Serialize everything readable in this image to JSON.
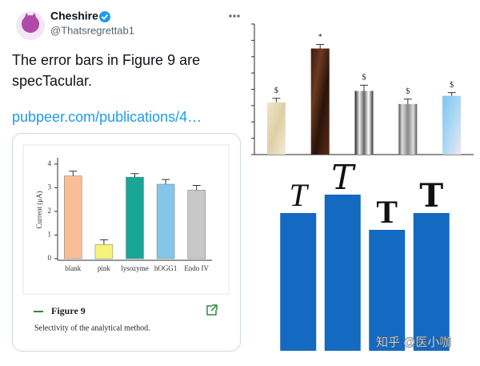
{
  "tweet": {
    "name": "Cheshire",
    "handle": "@Thatsregrettab1",
    "text_lines": [
      "The error bars in Figure 9 are",
      "specTacular."
    ],
    "link": "pubpeer.com/publications/4…"
  },
  "card": {
    "figure_label": "Figure 9",
    "caption": "Selectivity of the analytical method."
  },
  "watermark": "知乎 @医小咖",
  "chart_data": [
    {
      "type": "bar",
      "y_label": "Current (μA)",
      "categories": [
        "blank",
        "pink",
        "lysozyme",
        "hOGG1",
        "Endo IV"
      ],
      "values": [
        3.5,
        0.6,
        3.45,
        3.15,
        2.9
      ],
      "errors": [
        0.2,
        0.2,
        0.15,
        0.2,
        0.2
      ],
      "colors": [
        "#f9be94",
        "#f7f27a",
        "#1aa697",
        "#84c6ea",
        "#c8c8c8"
      ],
      "ylim": [
        0,
        4.2
      ],
      "yticks": [
        0,
        1,
        2,
        3,
        4
      ]
    },
    {
      "type": "bar",
      "categories": [
        null,
        null,
        null,
        null,
        null
      ],
      "values": [
        3.2,
        6.5,
        3.9,
        3.1,
        3.6
      ],
      "errors": [
        0.25,
        0.25,
        0.35,
        0.3,
        0.2
      ],
      "annotations": [
        "$",
        "*",
        "$",
        "$",
        "$"
      ],
      "ylim": [
        0,
        8
      ],
      "yticks": [
        0,
        1,
        2,
        3,
        4,
        5,
        6,
        7,
        8
      ]
    },
    {
      "type": "bar",
      "categories": [
        "T",
        "T",
        "T",
        "T"
      ],
      "values": [
        172,
        195,
        151,
        172
      ],
      "color": "#1469c0",
      "ylim": [
        0,
        200
      ]
    }
  ]
}
